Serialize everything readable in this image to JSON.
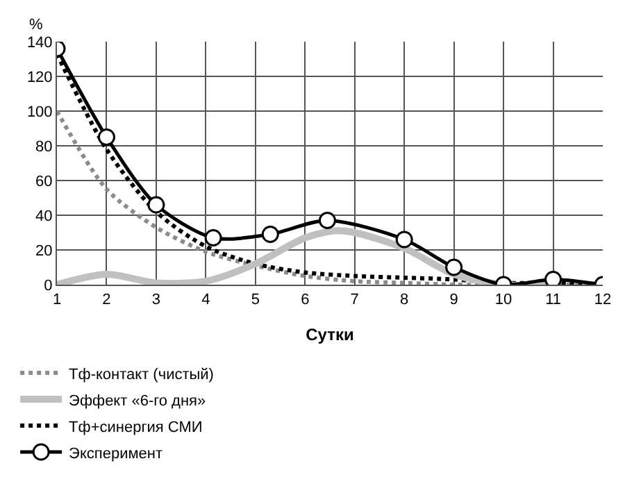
{
  "chart_data": {
    "type": "line",
    "xlabel": "Сутки",
    "ylabel": "%",
    "xlim": [
      1,
      12
    ],
    "xticks": [
      1,
      2,
      3,
      4,
      5,
      6,
      7,
      8,
      9,
      10,
      11,
      12
    ],
    "ylim": [
      0,
      140
    ],
    "yticks": [
      0,
      20,
      40,
      60,
      80,
      100,
      120,
      140
    ],
    "grid": true,
    "legend": "bottom",
    "series": [
      {
        "name": "Тф-контакт (чистый)",
        "color": "#8c8c8c",
        "line_style": "dotted",
        "marker": "none",
        "x": [
          1,
          2,
          3,
          4,
          5,
          6,
          7,
          8,
          9,
          10,
          11,
          12
        ],
        "values": [
          100,
          55,
          33,
          19,
          11,
          5,
          2,
          1,
          0,
          0,
          0,
          0
        ]
      },
      {
        "name": "Тф+синергия СМИ",
        "color": "#000000",
        "line_style": "dotted",
        "marker": "none",
        "x": [
          1,
          2,
          3,
          4,
          5,
          6,
          7,
          8,
          9,
          10,
          11,
          12
        ],
        "values": [
          133,
          78,
          42,
          22,
          12,
          7,
          5,
          4,
          3,
          1,
          1,
          0
        ]
      },
      {
        "name": "Эффект «6-го дня»",
        "color": "#c0c0c0",
        "line_style": "solid",
        "marker": "none",
        "x": [
          1,
          2,
          3,
          4,
          5,
          6,
          6.6,
          7,
          8,
          9,
          10,
          11
        ],
        "values": [
          0,
          6,
          1,
          2,
          12,
          27,
          31,
          30,
          21,
          6,
          0,
          0
        ]
      },
      {
        "name": "Эксперимент",
        "color": "#000000",
        "line_style": "solid",
        "marker": "circle",
        "x": [
          1,
          2,
          3,
          4.15,
          5.3,
          6.45,
          8,
          9,
          10,
          11,
          12
        ],
        "values": [
          136,
          85,
          46,
          27,
          29,
          37,
          26,
          10,
          0,
          3,
          0
        ]
      }
    ]
  }
}
